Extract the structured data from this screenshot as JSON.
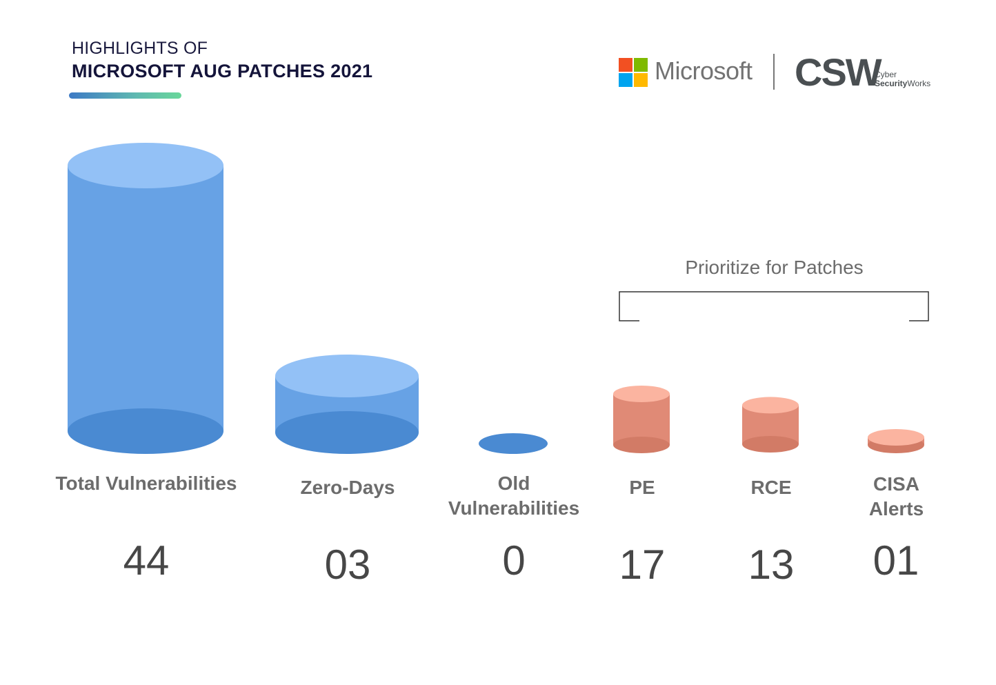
{
  "header": {
    "title_line1": "HIGHLIGHTS OF",
    "title_line2": "MICROSOFT AUG PATCHES 2021"
  },
  "logos": {
    "microsoft_text": "Microsoft",
    "microsoft_colors": [
      "#f25022",
      "#7fba00",
      "#00a4ef",
      "#ffb900"
    ],
    "csw_mark": "CSW",
    "csw_line1": "Cyber",
    "csw_line2_bold": "Security",
    "csw_line2_rest": "Works"
  },
  "bracket": {
    "label": "Prioritize for Patches"
  },
  "colors": {
    "blue_top": "#93c1f6",
    "blue_body": "#67a2e5",
    "blue_base": "#4a8ad2",
    "red_top": "#fbb4a0",
    "red_body": "#e08a76",
    "red_base": "#d27b66"
  },
  "chart_data": {
    "type": "bar",
    "categories": [
      "Total Vulnerabilities",
      "Zero-Days",
      "Old Vulnerabilities",
      "PE",
      "RCE",
      "CISA Alerts"
    ],
    "values": [
      44,
      3,
      0,
      17,
      13,
      1
    ],
    "value_labels": [
      "44",
      "03",
      "0",
      "17",
      "13",
      "01"
    ],
    "groups": [
      "blue",
      "blue",
      "blue",
      "red",
      "red",
      "red"
    ],
    "title": "",
    "xlabel": "",
    "ylabel": ""
  }
}
